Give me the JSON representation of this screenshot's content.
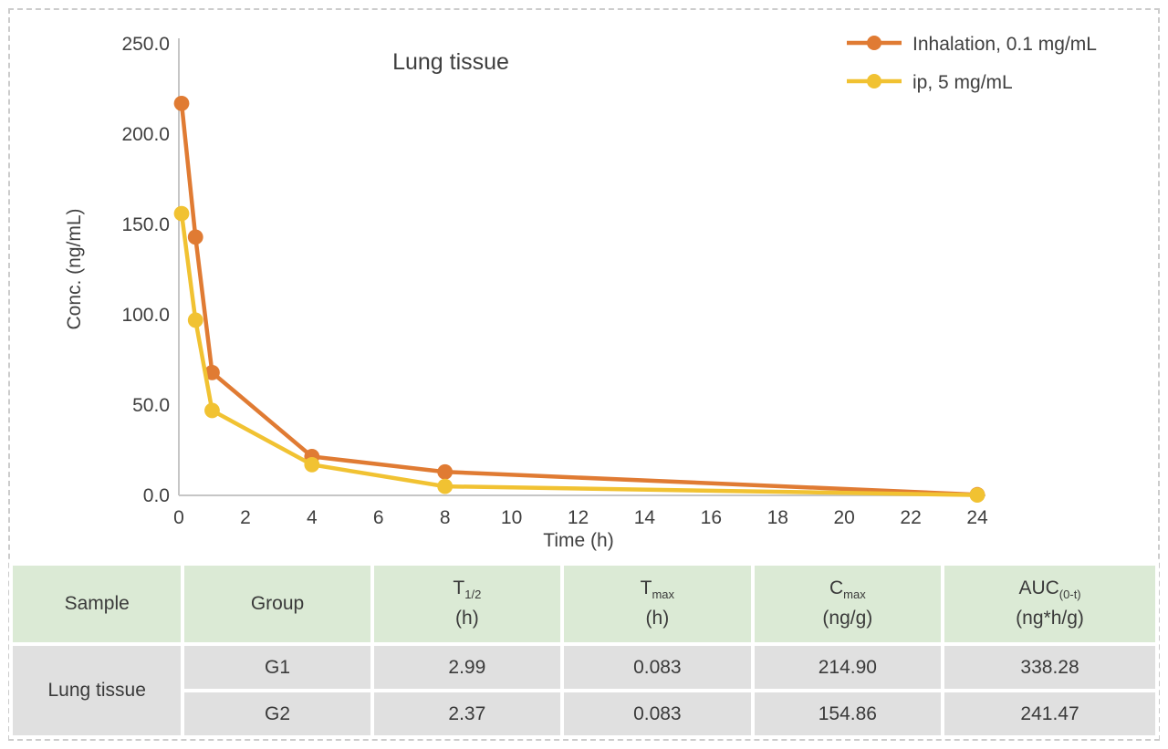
{
  "chart_data": {
    "type": "line",
    "title": "Lung tissue",
    "xlabel": "Time (h)",
    "ylabel": "Conc. (ng/mL)",
    "xlim": [
      0,
      24
    ],
    "ylim": [
      0,
      250
    ],
    "x_tick_step": 2,
    "y_tick_step": 50,
    "y_tick_decimals": 1,
    "grid": false,
    "legend_position": "top-right",
    "x": [
      0.083,
      0.5,
      1,
      4,
      8,
      24
    ],
    "series": [
      {
        "name": "Inhalation, 0.1 mg/mL",
        "color": "#e07b33",
        "values": [
          217,
          143,
          68,
          21.5,
          13,
          0.4
        ]
      },
      {
        "name": "ip, 5 mg/mL",
        "color": "#f1c232",
        "values": [
          156,
          97,
          47,
          17,
          5,
          0.2
        ]
      }
    ]
  },
  "table": {
    "columns": [
      {
        "label": "Sample",
        "sub": "",
        "unit": ""
      },
      {
        "label": "Group",
        "sub": "",
        "unit": ""
      },
      {
        "label": "T",
        "sub": "1/2",
        "unit": "(h)"
      },
      {
        "label": "T",
        "sub": "max",
        "unit": "(h)"
      },
      {
        "label": "C",
        "sub": "max",
        "unit": "(ng/g)"
      },
      {
        "label": "AUC",
        "sub": "(0-t)",
        "unit": "(ng*h/g)"
      }
    ],
    "rows": [
      {
        "sample": "Lung tissue",
        "sample_rowspan": 2,
        "group": "G1",
        "values": [
          "2.99",
          "0.083",
          "214.90",
          "338.28"
        ]
      },
      {
        "group": "G2",
        "values": [
          "2.37",
          "0.083",
          "154.86",
          "241.47"
        ]
      }
    ]
  },
  "colors": {
    "axis_line": "#c6c6c6",
    "label_text": "#3f3f3f",
    "header_bg": "#dbead5",
    "body_bg": "#e0e0e0",
    "frame_dash": "#cccccc",
    "cell_gap": "#ffffff"
  }
}
